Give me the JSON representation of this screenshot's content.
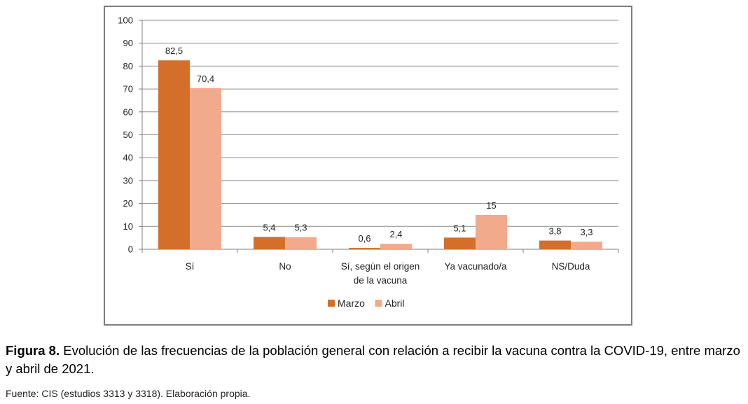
{
  "chart_data": {
    "type": "bar",
    "categories": [
      "Sí",
      "No",
      "Sí, según el origen de la vacuna",
      "Ya vacunado/a",
      "NS/Duda"
    ],
    "category_lines": [
      [
        "Sí"
      ],
      [
        "No"
      ],
      [
        "Sí, según el origen",
        "de la vacuna"
      ],
      [
        "Ya vacunado/a"
      ],
      [
        "NS/Duda"
      ]
    ],
    "series": [
      {
        "name": "Marzo",
        "values": [
          82.5,
          5.4,
          0.6,
          5.1,
          3.8
        ],
        "labels": [
          "82,5",
          "5,4",
          "0,6",
          "5,1",
          "3,8"
        ],
        "color": "#d46f2b"
      },
      {
        "name": "Abril",
        "values": [
          70.4,
          5.3,
          2.4,
          15,
          3.3
        ],
        "labels": [
          "70,4",
          "5,3",
          "2,4",
          "15",
          "3,3"
        ],
        "color": "#f2aa8c"
      }
    ],
    "yticks": [
      0,
      10,
      20,
      30,
      40,
      50,
      60,
      70,
      80,
      90,
      100
    ],
    "ylim": [
      0,
      100
    ],
    "grid": true,
    "legend_position": "bottom"
  },
  "caption": {
    "label": "Figura 8.",
    "text": " Evolución de las frecuencias de la población general con relación a recibir la vacuna contra la COVID-19, entre marzo y abril de 2021."
  },
  "source": "Fuente: CIS (estudios 3313 y 3318). Elaboración propia."
}
